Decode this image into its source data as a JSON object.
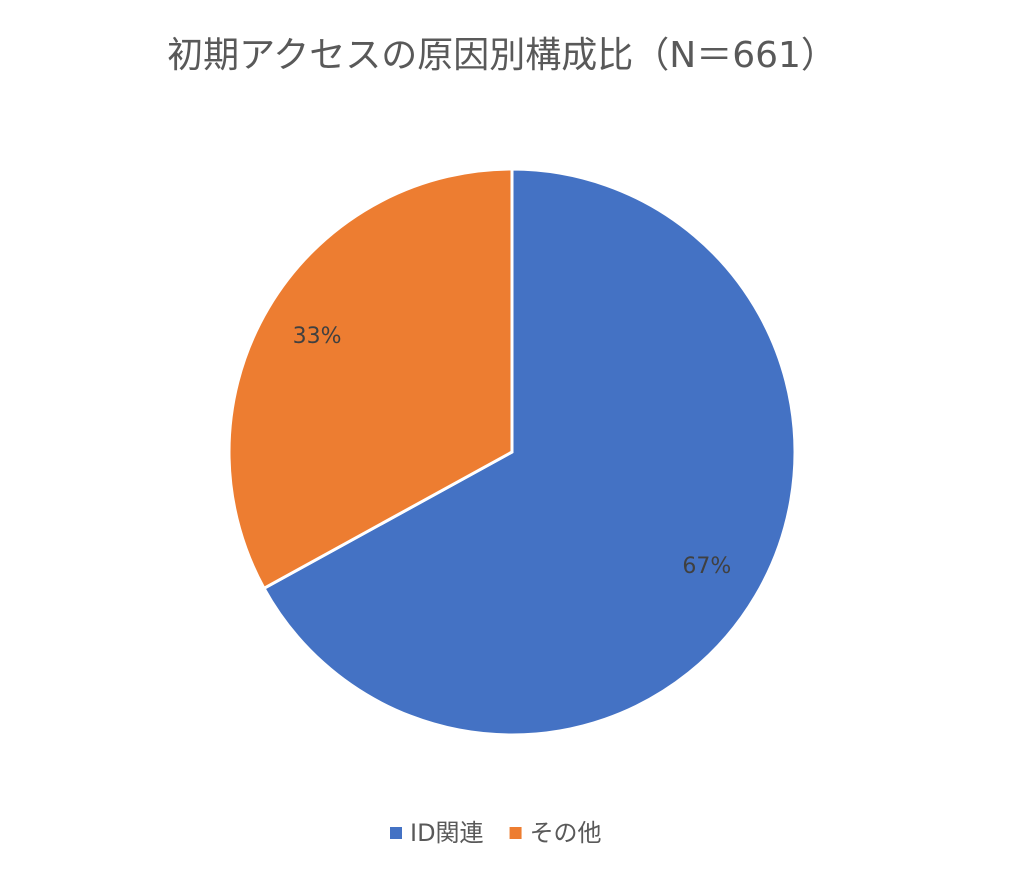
{
  "chart_data": {
    "type": "pie",
    "title": "初期アクセスの原因別構成比（N＝661）",
    "categories": [
      "ID関連",
      "その他"
    ],
    "values": [
      67,
      33
    ],
    "value_labels": [
      "67%",
      "33%"
    ],
    "colors": [
      "#4472c4",
      "#ed7d31"
    ],
    "legend": "bottom"
  }
}
